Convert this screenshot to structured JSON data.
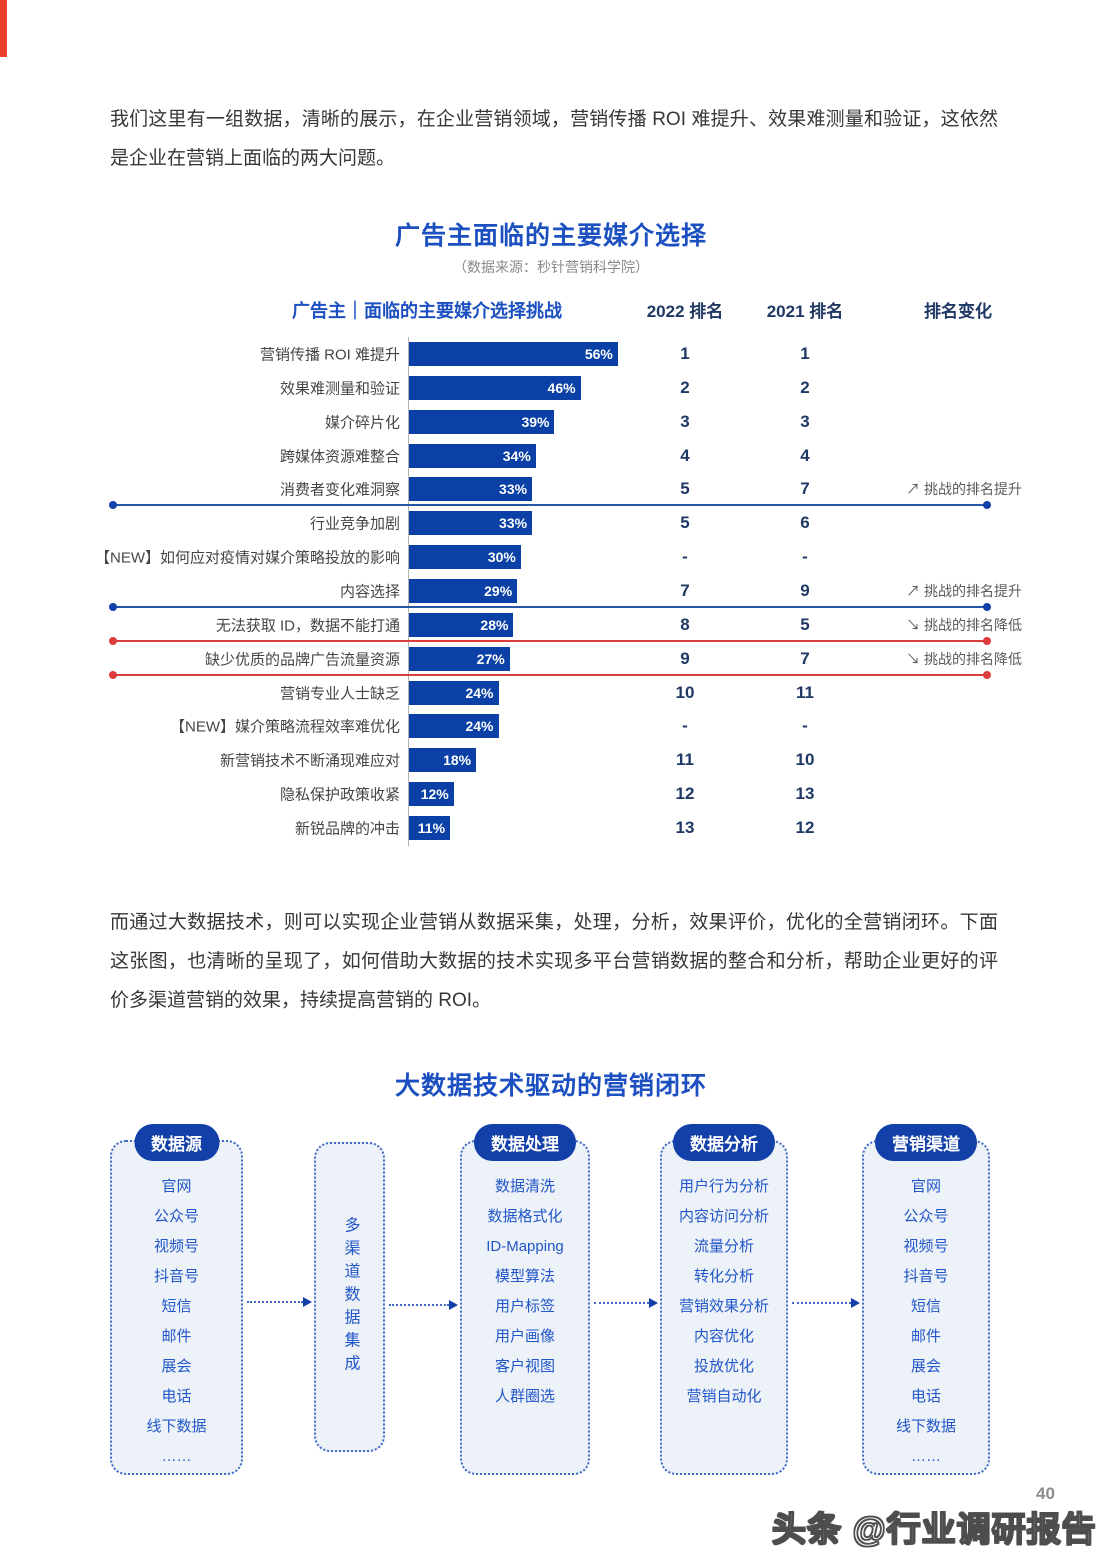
{
  "colors": {
    "bar_blue": "#0B41A6",
    "title_blue": "#1C50C0",
    "header_navy": "#1F3864",
    "pill_blue": "#1240A8",
    "line_blue": "#2456A8",
    "line_red": "#DD3C3C",
    "accent_red": "#E8402A",
    "box_fill": "#EDF1F8",
    "item_blue": "#2157C8"
  },
  "paragraphs": {
    "intro": "我们这里有一组数据，清晰的展示，在企业营销领域，营销传播 ROI 难提升、效果难测量和验证，这依然是企业在营销上面临的两大问题。",
    "middle": "而通过大数据技术，则可以实现企业营销从数据采集，处理，分析，效果评价，优化的全营销闭环。下面这张图，也清晰的呈现了，如何借助大数据的技术实现多平台营销数据的整合和分析，帮助企业更好的评价多渠道营销的效果，持续提高营销的 ROI。"
  },
  "chart": {
    "title": "广告主面临的主要媒介选择",
    "source": "（数据来源：秒针营销科学院）",
    "header": {
      "challenge": "广告主｜面临的主要媒介选择挑战",
      "rank_2022": "2022 排名",
      "rank_2021": "2021 排名",
      "change": "排名变化"
    },
    "chart_data": {
      "type": "bar",
      "orientation": "horizontal",
      "unit": "%",
      "xlim": [
        0,
        60
      ],
      "title": "广告主面临的主要媒介选择",
      "rows": [
        {
          "label": "营销传播 ROI 难提升",
          "value": 56,
          "rank_2022": "1",
          "rank_2021": "1",
          "change": "",
          "line_after": null
        },
        {
          "label": "效果难测量和验证",
          "value": 46,
          "rank_2022": "2",
          "rank_2021": "2",
          "change": "",
          "line_after": null
        },
        {
          "label": "媒介碎片化",
          "value": 39,
          "rank_2022": "3",
          "rank_2021": "3",
          "change": "",
          "line_after": null
        },
        {
          "label": "跨媒体资源难整合",
          "value": 34,
          "rank_2022": "4",
          "rank_2021": "4",
          "change": "",
          "line_after": null
        },
        {
          "label": "消费者变化难洞察",
          "value": 33,
          "rank_2022": "5",
          "rank_2021": "7",
          "change": "↗ 挑战的排名提升",
          "line_after": "blue"
        },
        {
          "label": "行业竞争加剧",
          "value": 33,
          "rank_2022": "5",
          "rank_2021": "6",
          "change": "",
          "line_after": null
        },
        {
          "label": "【NEW】如何应对疫情对媒介策略投放的影响",
          "value": 30,
          "rank_2022": "-",
          "rank_2021": "-",
          "change": "",
          "line_after": null
        },
        {
          "label": "内容选择",
          "value": 29,
          "rank_2022": "7",
          "rank_2021": "9",
          "change": "↗ 挑战的排名提升",
          "line_after": "blue"
        },
        {
          "label": "无法获取 ID，数据不能打通",
          "value": 28,
          "rank_2022": "8",
          "rank_2021": "5",
          "change": "↘ 挑战的排名降低",
          "line_after": "red"
        },
        {
          "label": "缺少优质的品牌广告流量资源",
          "value": 27,
          "rank_2022": "9",
          "rank_2021": "7",
          "change": "↘ 挑战的排名降低",
          "line_after": "red"
        },
        {
          "label": "营销专业人士缺乏",
          "value": 24,
          "rank_2022": "10",
          "rank_2021": "11",
          "change": "",
          "line_after": null
        },
        {
          "label": "【NEW】媒介策略流程效率难优化",
          "value": 24,
          "rank_2022": "-",
          "rank_2021": "-",
          "change": "",
          "line_after": null
        },
        {
          "label": "新营销技术不断涌现难应对",
          "value": 18,
          "rank_2022": "11",
          "rank_2021": "10",
          "change": "",
          "line_after": null
        },
        {
          "label": "隐私保护政策收紧",
          "value": 12,
          "rank_2022": "12",
          "rank_2021": "13",
          "change": "",
          "line_after": null
        },
        {
          "label": "新锐品牌的冲击",
          "value": 11,
          "rank_2022": "13",
          "rank_2021": "12",
          "change": "",
          "line_after": null
        }
      ]
    }
  },
  "diagram": {
    "title": "大数据技术驱动的营销闭环",
    "columns": [
      {
        "id": "data-source",
        "header": "数据源",
        "items": [
          "官网",
          "公众号",
          "视频号",
          "抖音号",
          "短信",
          "邮件",
          "展会",
          "电话",
          "线下数据",
          "……"
        ]
      },
      {
        "id": "integration",
        "vertical_label": "多渠道数据集成"
      },
      {
        "id": "data-processing",
        "header": "数据处理",
        "items": [
          "数据清洗",
          "数据格式化",
          "ID-Mapping",
          "模型算法",
          "用户标签",
          "用户画像",
          "客户视图",
          "人群圈选"
        ]
      },
      {
        "id": "data-analysis",
        "header": "数据分析",
        "items": [
          "用户行为分析",
          "内容访问分析",
          "流量分析",
          "转化分析",
          "营销效果分析",
          "内容优化",
          "投放优化",
          "营销自动化"
        ]
      },
      {
        "id": "marketing-channel",
        "header": "营销渠道",
        "items": [
          "官网",
          "公众号",
          "视频号",
          "抖音号",
          "短信",
          "邮件",
          "展会",
          "电话",
          "线下数据",
          "……"
        ]
      }
    ]
  },
  "footer": {
    "page_number": "40",
    "watermark": "头条 @行业调研报告"
  }
}
